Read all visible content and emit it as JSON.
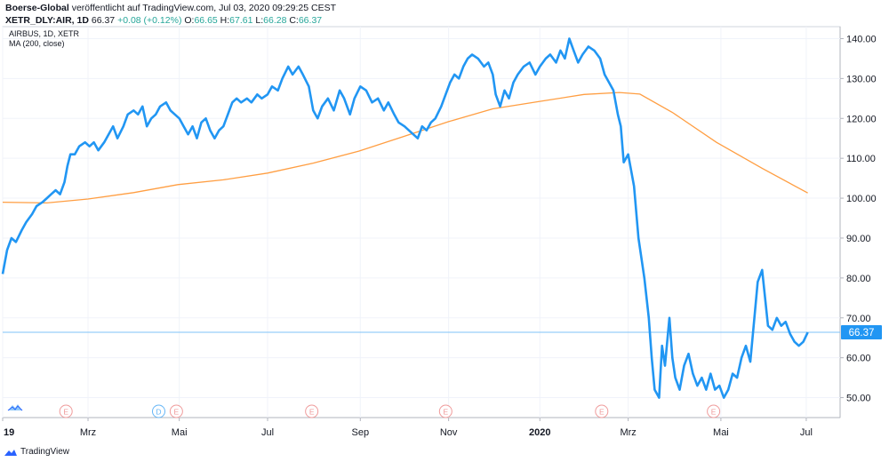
{
  "header": {
    "publisher": "Boerse-Global",
    "published_text": "veröffentlicht auf TradingView.com, Jul 03, 2020 09:29:25 CEST",
    "symbol_line": "XETR_DLY:AIR, 1D",
    "last": "66.37",
    "change": "+0.08 (+0.12%)",
    "o_label": "O:",
    "o_value": "66.65",
    "h_label": "H:",
    "h_value": "67.61",
    "l_label": "L:",
    "l_value": "66.28",
    "c_label": "C:",
    "c_value": "66.37"
  },
  "legend": {
    "symbol": "AIRBUS, 1D, XETR",
    "ma": "MA (200, close)"
  },
  "footer": {
    "brand": "TradingView"
  },
  "colors": {
    "price_line": "#2196f3",
    "ma_line": "#ff9e42",
    "last_price_line": "#7fc3f7",
    "event_marker": "#ef9a9a",
    "dividend_marker": "#64b5f6"
  },
  "chart_data": {
    "type": "line",
    "ylim": [
      45,
      143
    ],
    "yticks": [
      "50.00",
      "60.00",
      "70.00",
      "80.00",
      "90.00",
      "100.00",
      "110.00",
      "120.00",
      "130.00",
      "140.00"
    ],
    "ytick_values": [
      50,
      60,
      70,
      80,
      90,
      100,
      110,
      120,
      130,
      140
    ],
    "xlim": [
      "2019-01-02",
      "2020-07-24"
    ],
    "xticks": [
      {
        "label": "19",
        "date": "2019-01-02",
        "bold": true
      },
      {
        "label": "Mrz",
        "date": "2019-03-01",
        "bold": false
      },
      {
        "label": "Mai",
        "date": "2019-05-02",
        "bold": false
      },
      {
        "label": "Jul",
        "date": "2019-07-01",
        "bold": false
      },
      {
        "label": "Sep",
        "date": "2019-09-02",
        "bold": false
      },
      {
        "label": "Nov",
        "date": "2019-11-01",
        "bold": false
      },
      {
        "label": "2020",
        "date": "2020-01-02",
        "bold": true
      },
      {
        "label": "Mrz",
        "date": "2020-03-02",
        "bold": false
      },
      {
        "label": "Mai",
        "date": "2020-05-04",
        "bold": false
      },
      {
        "label": "Jul",
        "date": "2020-07-01",
        "bold": false
      }
    ],
    "last_price": 66.37,
    "last_price_label": "66.37",
    "events": [
      {
        "type": "E",
        "date": "2019-02-14"
      },
      {
        "type": "D",
        "date": "2019-04-18"
      },
      {
        "type": "E",
        "date": "2019-04-30"
      },
      {
        "type": "E",
        "date": "2019-07-31"
      },
      {
        "type": "E",
        "date": "2019-10-30"
      },
      {
        "type": "E",
        "date": "2020-02-13"
      },
      {
        "type": "E",
        "date": "2020-04-29"
      }
    ],
    "series": [
      {
        "name": "AIRBUS, 1D, XETR",
        "color": "#2196f3",
        "points": [
          [
            "2019-01-02",
            81
          ],
          [
            "2019-01-05",
            87
          ],
          [
            "2019-01-08",
            90
          ],
          [
            "2019-01-11",
            89
          ],
          [
            "2019-01-15",
            92
          ],
          [
            "2019-01-18",
            94
          ],
          [
            "2019-01-22",
            96
          ],
          [
            "2019-01-25",
            98
          ],
          [
            "2019-01-29",
            99
          ],
          [
            "2019-02-01",
            100
          ],
          [
            "2019-02-04",
            101
          ],
          [
            "2019-02-07",
            102
          ],
          [
            "2019-02-10",
            101
          ],
          [
            "2019-02-13",
            104
          ],
          [
            "2019-02-15",
            108
          ],
          [
            "2019-02-17",
            111
          ],
          [
            "2019-02-20",
            111
          ],
          [
            "2019-02-23",
            113
          ],
          [
            "2019-02-27",
            114
          ],
          [
            "2019-03-02",
            113
          ],
          [
            "2019-03-05",
            114
          ],
          [
            "2019-03-08",
            112
          ],
          [
            "2019-03-12",
            114
          ],
          [
            "2019-03-15",
            116
          ],
          [
            "2019-03-18",
            118
          ],
          [
            "2019-03-21",
            115
          ],
          [
            "2019-03-25",
            118
          ],
          [
            "2019-03-28",
            121
          ],
          [
            "2019-04-01",
            122
          ],
          [
            "2019-04-04",
            121
          ],
          [
            "2019-04-07",
            123
          ],
          [
            "2019-04-10",
            118
          ],
          [
            "2019-04-13",
            120
          ],
          [
            "2019-04-16",
            121
          ],
          [
            "2019-04-19",
            123
          ],
          [
            "2019-04-23",
            124
          ],
          [
            "2019-04-26",
            122
          ],
          [
            "2019-04-29",
            121
          ],
          [
            "2019-05-02",
            120
          ],
          [
            "2019-05-05",
            118
          ],
          [
            "2019-05-08",
            116
          ],
          [
            "2019-05-11",
            118
          ],
          [
            "2019-05-14",
            115
          ],
          [
            "2019-05-17",
            119
          ],
          [
            "2019-05-20",
            120
          ],
          [
            "2019-05-23",
            117
          ],
          [
            "2019-05-26",
            115
          ],
          [
            "2019-05-29",
            117
          ],
          [
            "2019-06-01",
            118
          ],
          [
            "2019-06-04",
            121
          ],
          [
            "2019-06-07",
            124
          ],
          [
            "2019-06-10",
            125
          ],
          [
            "2019-06-13",
            124
          ],
          [
            "2019-06-17",
            125
          ],
          [
            "2019-06-20",
            124
          ],
          [
            "2019-06-24",
            126
          ],
          [
            "2019-06-27",
            125
          ],
          [
            "2019-07-01",
            126
          ],
          [
            "2019-07-04",
            128
          ],
          [
            "2019-07-08",
            127
          ],
          [
            "2019-07-11",
            130
          ],
          [
            "2019-07-15",
            133
          ],
          [
            "2019-07-18",
            131
          ],
          [
            "2019-07-22",
            133
          ],
          [
            "2019-07-25",
            131
          ],
          [
            "2019-07-29",
            128
          ],
          [
            "2019-08-01",
            122
          ],
          [
            "2019-08-04",
            120
          ],
          [
            "2019-08-07",
            123
          ],
          [
            "2019-08-11",
            125
          ],
          [
            "2019-08-15",
            122
          ],
          [
            "2019-08-19",
            127
          ],
          [
            "2019-08-22",
            125
          ],
          [
            "2019-08-26",
            121
          ],
          [
            "2019-08-29",
            125
          ],
          [
            "2019-09-02",
            128
          ],
          [
            "2019-09-06",
            127
          ],
          [
            "2019-09-10",
            124
          ],
          [
            "2019-09-14",
            125
          ],
          [
            "2019-09-18",
            122
          ],
          [
            "2019-09-21",
            124
          ],
          [
            "2019-09-25",
            121
          ],
          [
            "2019-09-28",
            119
          ],
          [
            "2019-10-02",
            118
          ],
          [
            "2019-10-05",
            117
          ],
          [
            "2019-10-08",
            116
          ],
          [
            "2019-10-11",
            115
          ],
          [
            "2019-10-14",
            118
          ],
          [
            "2019-10-17",
            117
          ],
          [
            "2019-10-20",
            119
          ],
          [
            "2019-10-23",
            120
          ],
          [
            "2019-10-27",
            123
          ],
          [
            "2019-10-30",
            126
          ],
          [
            "2019-11-02",
            129
          ],
          [
            "2019-11-05",
            131
          ],
          [
            "2019-11-08",
            130
          ],
          [
            "2019-11-11",
            133
          ],
          [
            "2019-11-14",
            135
          ],
          [
            "2019-11-17",
            136
          ],
          [
            "2019-11-21",
            135
          ],
          [
            "2019-11-25",
            133
          ],
          [
            "2019-11-28",
            134
          ],
          [
            "2019-12-01",
            131
          ],
          [
            "2019-12-03",
            126
          ],
          [
            "2019-12-06",
            123
          ],
          [
            "2019-12-09",
            127
          ],
          [
            "2019-12-12",
            125
          ],
          [
            "2019-12-15",
            129
          ],
          [
            "2019-12-18",
            131
          ],
          [
            "2019-12-22",
            133
          ],
          [
            "2019-12-26",
            134
          ],
          [
            "2019-12-30",
            131
          ],
          [
            "2020-01-02",
            133
          ],
          [
            "2020-01-06",
            135
          ],
          [
            "2020-01-09",
            136
          ],
          [
            "2020-01-13",
            134
          ],
          [
            "2020-01-16",
            137
          ],
          [
            "2020-01-19",
            135
          ],
          [
            "2020-01-22",
            140
          ],
          [
            "2020-01-25",
            137
          ],
          [
            "2020-01-28",
            134
          ],
          [
            "2020-01-31",
            136
          ],
          [
            "2020-02-04",
            138
          ],
          [
            "2020-02-08",
            137
          ],
          [
            "2020-02-12",
            135
          ],
          [
            "2020-02-15",
            131
          ],
          [
            "2020-02-18",
            129
          ],
          [
            "2020-02-21",
            127
          ],
          [
            "2020-02-24",
            121
          ],
          [
            "2020-02-26",
            118
          ],
          [
            "2020-02-28",
            109
          ],
          [
            "2020-03-02",
            111
          ],
          [
            "2020-03-04",
            107
          ],
          [
            "2020-03-06",
            103
          ],
          [
            "2020-03-09",
            90
          ],
          [
            "2020-03-11",
            85
          ],
          [
            "2020-03-13",
            80
          ],
          [
            "2020-03-16",
            70
          ],
          [
            "2020-03-18",
            60
          ],
          [
            "2020-03-20",
            52
          ],
          [
            "2020-03-23",
            50
          ],
          [
            "2020-03-25",
            63
          ],
          [
            "2020-03-27",
            58
          ],
          [
            "2020-03-30",
            70
          ],
          [
            "2020-04-01",
            60
          ],
          [
            "2020-04-03",
            55
          ],
          [
            "2020-04-06",
            52
          ],
          [
            "2020-04-09",
            58
          ],
          [
            "2020-04-12",
            61
          ],
          [
            "2020-04-15",
            56
          ],
          [
            "2020-04-18",
            53
          ],
          [
            "2020-04-21",
            55
          ],
          [
            "2020-04-24",
            52
          ],
          [
            "2020-04-27",
            56
          ],
          [
            "2020-04-30",
            52
          ],
          [
            "2020-05-03",
            53
          ],
          [
            "2020-05-06",
            50
          ],
          [
            "2020-05-09",
            52
          ],
          [
            "2020-05-12",
            56
          ],
          [
            "2020-05-15",
            55
          ],
          [
            "2020-05-18",
            60
          ],
          [
            "2020-05-21",
            63
          ],
          [
            "2020-05-24",
            59
          ],
          [
            "2020-05-27",
            71
          ],
          [
            "2020-05-29",
            79
          ],
          [
            "2020-06-01",
            82
          ],
          [
            "2020-06-03",
            75
          ],
          [
            "2020-06-05",
            68
          ],
          [
            "2020-06-08",
            67
          ],
          [
            "2020-06-11",
            70
          ],
          [
            "2020-06-14",
            68
          ],
          [
            "2020-06-17",
            69
          ],
          [
            "2020-06-20",
            66
          ],
          [
            "2020-06-23",
            64
          ],
          [
            "2020-06-26",
            63
          ],
          [
            "2020-06-29",
            64
          ],
          [
            "2020-07-02",
            66.37
          ]
        ]
      },
      {
        "name": "MA (200, close)",
        "color": "#ff9e42",
        "points": [
          [
            "2019-01-02",
            99
          ],
          [
            "2019-02-01",
            98.8
          ],
          [
            "2019-03-01",
            99.8
          ],
          [
            "2019-04-01",
            101.4
          ],
          [
            "2019-05-01",
            103.4
          ],
          [
            "2019-06-01",
            104.6
          ],
          [
            "2019-07-01",
            106.3
          ],
          [
            "2019-08-01",
            108.8
          ],
          [
            "2019-09-01",
            111.8
          ],
          [
            "2019-10-01",
            115.4
          ],
          [
            "2019-11-01",
            119.2
          ],
          [
            "2019-12-01",
            122.4
          ],
          [
            "2020-01-01",
            124.2
          ],
          [
            "2020-02-01",
            126.0
          ],
          [
            "2020-02-25",
            126.5
          ],
          [
            "2020-03-10",
            126.1
          ],
          [
            "2020-04-01",
            121.5
          ],
          [
            "2020-05-01",
            114.0
          ],
          [
            "2020-06-01",
            107.5
          ],
          [
            "2020-07-02",
            101.3
          ]
        ]
      }
    ]
  }
}
